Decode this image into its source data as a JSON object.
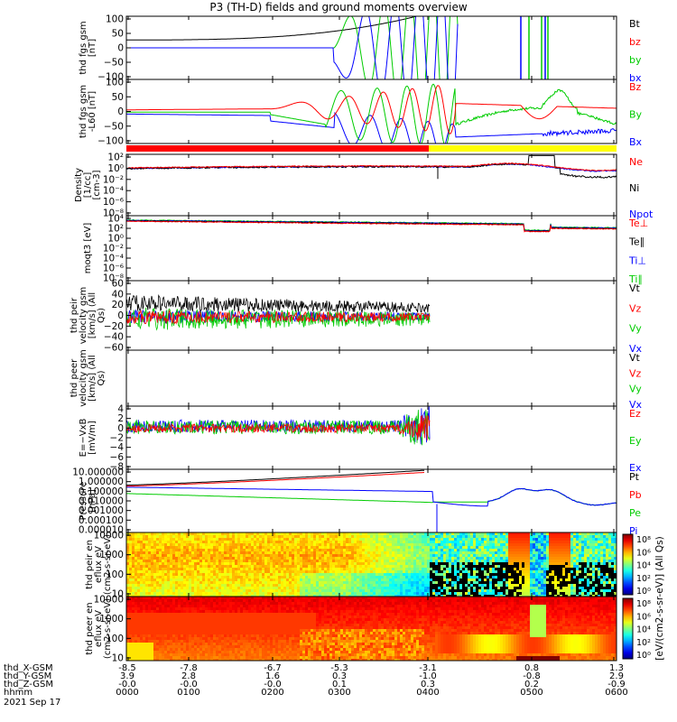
{
  "title": "P3 (TH-D) fields and ground moments overview",
  "chart_data": [
    {
      "type": "line",
      "ylabel": "thd fgs gsm [nT]",
      "yticks": [
        "100",
        "50",
        "0",
        "−50",
        "−100"
      ],
      "ylim": [
        -100,
        100
      ],
      "legend": [
        {
          "label": "Bt",
          "color": "#000000"
        },
        {
          "label": "bz",
          "color": "#ff0000"
        },
        {
          "label": "by",
          "color": "#00cc00"
        },
        {
          "label": "bx",
          "color": "#0000ff"
        }
      ]
    },
    {
      "type": "line",
      "ylabel": "thd fgs gsm -L60 [nT]",
      "yticks": [
        "100",
        "50",
        "0",
        "−50",
        "−100"
      ],
      "ylim": [
        -100,
        100
      ],
      "legend": [
        {
          "label": "Bz",
          "color": "#ff0000"
        },
        {
          "label": "By",
          "color": "#00cc00"
        },
        {
          "label": "Bx",
          "color": "#0000ff"
        }
      ]
    },
    {
      "type": "line",
      "ylabel": "Density [1/cc] [cm-3]",
      "yticks": [
        "10²",
        "10⁰",
        "10⁻²",
        "10⁻⁴",
        "10⁻⁶",
        "10⁻⁸"
      ],
      "ylim": [
        1e-08,
        100
      ],
      "legend": [
        {
          "label": "Ne",
          "color": "#ff0000"
        },
        {
          "label": "Ni",
          "color": "#000000"
        },
        {
          "label": "Npot",
          "color": "#0000ff"
        }
      ]
    },
    {
      "type": "line",
      "ylabel": "moqt3 [eV]",
      "yticks": [
        "10⁴",
        "10²",
        "10⁰",
        "10⁻²",
        "10⁻⁴",
        "10⁻⁶",
        "10⁻⁸"
      ],
      "ylim": [
        1e-08,
        10000.0
      ],
      "legend": [
        {
          "label": "Te⊥",
          "color": "#ff0000"
        },
        {
          "label": "Te∥",
          "color": "#000000"
        },
        {
          "label": "Ti⊥",
          "color": "#0000ff"
        },
        {
          "label": "Ti∥",
          "color": "#00cc00"
        }
      ]
    },
    {
      "type": "line",
      "ylabel": "thd peir velocity gsm [km/s] (All Qs)",
      "yticks": [
        "60",
        "40",
        "20",
        "0",
        "−20",
        "−40",
        "−60"
      ],
      "ylim": [
        -60,
        60
      ],
      "legend": [
        {
          "label": "Vt",
          "color": "#000000"
        },
        {
          "label": "Vz",
          "color": "#ff0000"
        },
        {
          "label": "Vy",
          "color": "#00cc00"
        },
        {
          "label": "Vx",
          "color": "#0000ff"
        }
      ]
    },
    {
      "type": "line",
      "ylabel": "thd peer velocity gsm [km/s] (All Qs)",
      "yticks": [],
      "legend": [
        {
          "label": "Vt",
          "color": "#000000"
        },
        {
          "label": "Vz",
          "color": "#ff0000"
        },
        {
          "label": "Vy",
          "color": "#00cc00"
        },
        {
          "label": "Vx",
          "color": "#0000ff"
        }
      ]
    },
    {
      "type": "line",
      "ylabel": "E=−VxB [mV/m]",
      "yticks": [
        "4",
        "2",
        "0",
        "−2",
        "−4",
        "−6",
        "−8"
      ],
      "ylim": [
        -8,
        4
      ],
      "legend": [
        {
          "label": "Ez",
          "color": "#ff0000"
        },
        {
          "label": "Ey",
          "color": "#00cc00"
        },
        {
          "label": "Ex",
          "color": "#0000ff"
        }
      ]
    },
    {
      "type": "line",
      "ylabel": "Pressure [nPa]",
      "yticks": [
        "10.000000",
        "1.000000",
        "0.100000",
        "0.010000",
        "0.001000",
        "0.000100",
        "0.000010"
      ],
      "ylim": [
        1e-05,
        10
      ],
      "legend": [
        {
          "label": "Pt",
          "color": "#000000"
        },
        {
          "label": "Pb",
          "color": "#ff0000"
        },
        {
          "label": "Pe",
          "color": "#00cc00"
        },
        {
          "label": "Pi",
          "color": "#0000ff"
        }
      ]
    },
    {
      "type": "heatmap",
      "ylabel": "thd peir en eflux eV (cm2-s-sr-eV)",
      "yticks": [
        "10000",
        "1000",
        "100",
        "10"
      ]
    },
    {
      "type": "heatmap",
      "ylabel": "thd peer en eflux eV (cm2-s-sr-eV)",
      "yticks": [
        "10000",
        "1000",
        "100",
        "10"
      ]
    }
  ],
  "colorbar": {
    "label": "[eV/(cm2-s-sr-eV)] (All Qs)",
    "ticks_top": [
      "10⁸",
      "10⁶",
      "10⁴",
      "10²",
      "10⁰"
    ],
    "ticks_bottom": [
      "10⁸",
      "10⁶",
      "10⁴",
      "10²",
      "10⁰"
    ]
  },
  "xaxis": {
    "row_labels": [
      "thd_X-GSM",
      "thd_Y-GSM",
      "thd_Z-GSM",
      "hhmm"
    ],
    "columns": [
      [
        "-8.5",
        "3.9",
        "-0.0",
        "0000"
      ],
      [
        "-7.8",
        "2.8",
        "-0.0",
        "0100"
      ],
      [
        "-6.7",
        "1.6",
        "-0.0",
        "0200"
      ],
      [
        "-5.3",
        "0.3",
        "0.1",
        "0300"
      ],
      [
        "-3.1",
        "-1.0",
        "0.3",
        "0400"
      ],
      [
        "0.8",
        "-0.8",
        "0.2",
        "0500"
      ],
      [
        "1.3",
        "2.9",
        "-0.9",
        "0600"
      ]
    ],
    "date": "2021 Sep 17"
  },
  "palette": {
    "black": "#000000",
    "red": "#ff0000",
    "green": "#00cc00",
    "blue": "#0000ff",
    "yellow": "#ffff00"
  }
}
